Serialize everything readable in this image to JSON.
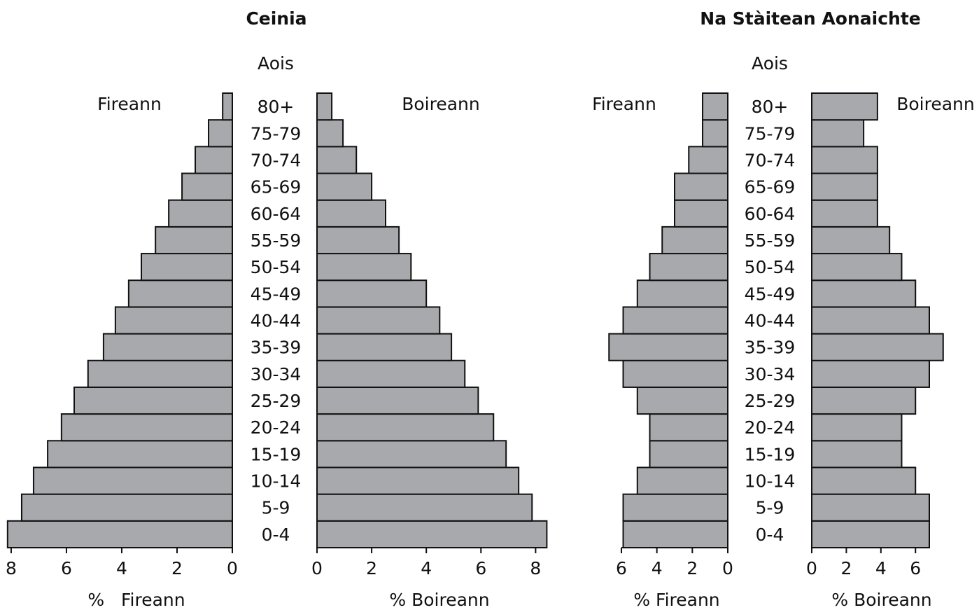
{
  "chart_data": [
    {
      "type": "pyramid",
      "title": "Ceinia",
      "age_label": "Aois",
      "categories": [
        "0-4",
        "5-9",
        "10-14",
        "15-19",
        "20-24",
        "25-29",
        "30-34",
        "35-39",
        "40-44",
        "45-49",
        "50-54",
        "55-59",
        "60-64",
        "65-69",
        "70-74",
        "75-79",
        "80+"
      ],
      "series": [
        {
          "name": "Fireann",
          "side": "left",
          "color": "#a7a9ac",
          "xlabel": "%   Fireann",
          "values": [
            8.13,
            7.62,
            7.19,
            6.68,
            6.18,
            5.72,
            5.22,
            4.66,
            4.23,
            3.75,
            3.29,
            2.78,
            2.3,
            1.82,
            1.34,
            0.86,
            0.35
          ],
          "xlim": [
            0,
            8.1
          ],
          "xticks": [
            8,
            6,
            4,
            2,
            0
          ]
        },
        {
          "name": "Boireann",
          "side": "right",
          "color": "#a7a9ac",
          "xlabel": "% Boireann",
          "values": [
            8.41,
            7.87,
            7.38,
            6.92,
            6.46,
            5.9,
            5.41,
            4.92,
            4.49,
            4.0,
            3.44,
            3.0,
            2.51,
            2.0,
            1.44,
            0.95,
            0.54
          ],
          "xlim": [
            0,
            8.4
          ],
          "xticks": [
            0,
            2,
            4,
            6,
            8
          ]
        }
      ]
    },
    {
      "type": "pyramid",
      "title": "Na Stàitean Aonaichte",
      "age_label": "Aois",
      "categories": [
        "0-4",
        "5-9",
        "10-14",
        "15-19",
        "20-24",
        "25-29",
        "30-34",
        "35-39",
        "40-44",
        "45-49",
        "50-54",
        "55-59",
        "60-64",
        "65-69",
        "70-74",
        "75-79",
        "80+"
      ],
      "series": [
        {
          "name": "Fireann",
          "side": "left",
          "color": "#a7a9ac",
          "xlabel": "% Fireann",
          "values": [
            5.9,
            5.9,
            5.1,
            4.4,
            4.4,
            5.1,
            5.9,
            6.7,
            5.9,
            5.1,
            4.4,
            3.7,
            3.0,
            3.0,
            2.2,
            1.42,
            1.42
          ],
          "xlim": [
            0,
            6
          ],
          "xticks": [
            6,
            4,
            2,
            0
          ]
        },
        {
          "name": "Boireann",
          "side": "right",
          "color": "#a7a9ac",
          "xlabel": "% Boireann",
          "values": [
            6.8,
            6.8,
            6.0,
            5.2,
            5.2,
            6.0,
            6.8,
            7.6,
            6.8,
            6.0,
            5.2,
            4.5,
            3.8,
            3.8,
            3.8,
            3.0,
            3.8
          ],
          "xlim": [
            0,
            6.8
          ],
          "xticks": [
            0,
            2,
            4,
            6
          ]
        }
      ]
    }
  ]
}
